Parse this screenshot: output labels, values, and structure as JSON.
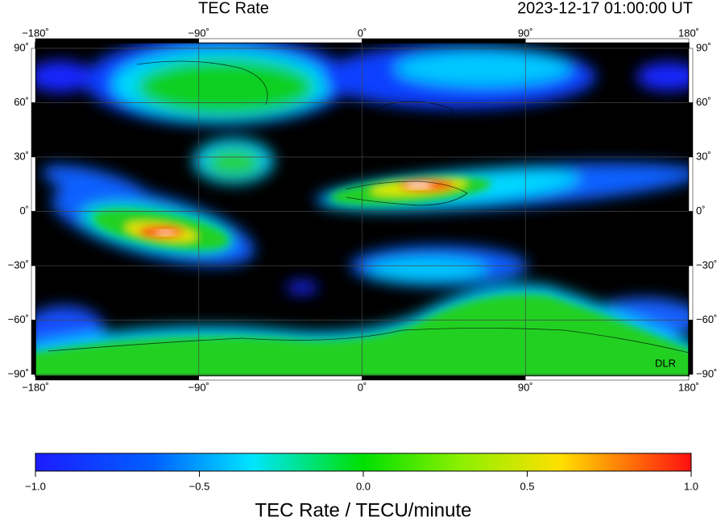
{
  "header": {
    "title": "TEC Rate",
    "timestamp": "2023-12-17  01:00:00 UT"
  },
  "map": {
    "lon_labels": [
      "−180˚",
      "−90˚",
      "0˚",
      "90˚",
      "180˚"
    ],
    "lat_labels": [
      "90˚",
      "60˚",
      "30˚",
      "0˚",
      "−30˚",
      "−60˚",
      "−90˚"
    ],
    "credit": "DLR"
  },
  "colorbar": {
    "ticks": [
      "−1.0",
      "−0.5",
      "0.0",
      "0.5",
      "1.0"
    ],
    "label": "TEC Rate / TECU/minute"
  }
}
